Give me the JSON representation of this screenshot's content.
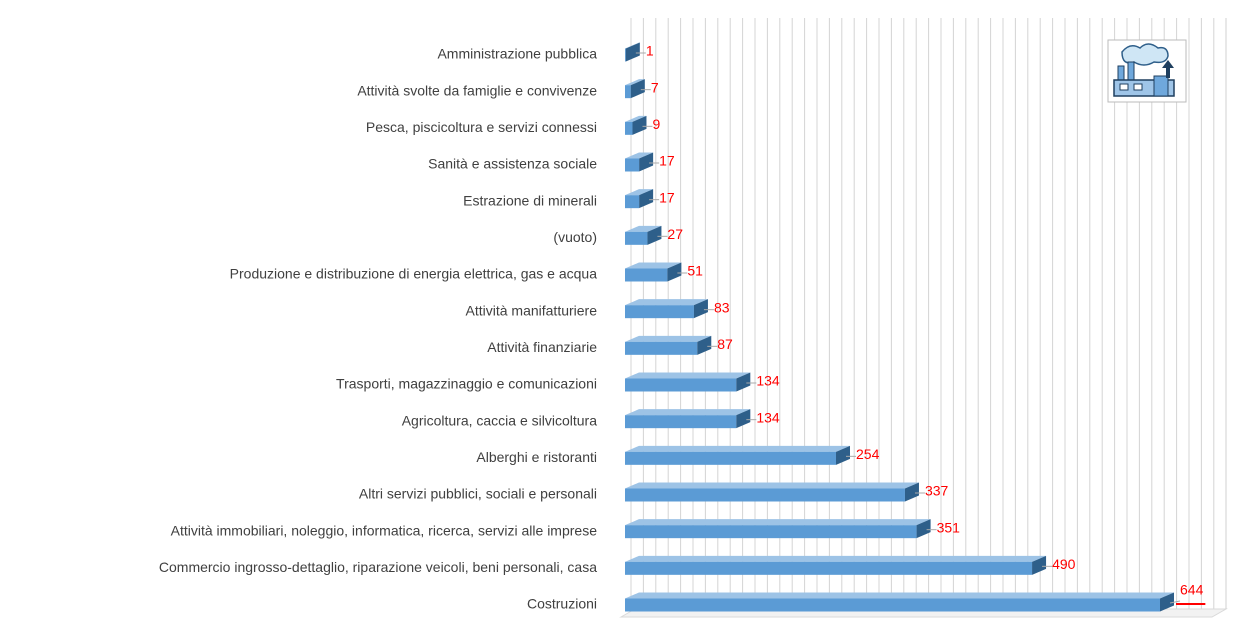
{
  "chart_data": {
    "type": "bar3d",
    "orientation": "horizontal",
    "categories": [
      "Amministrazione pubblica",
      "Attività svolte da famiglie e convivenze",
      "Pesca, piscicoltura e servizi connessi",
      "Sanità e assistenza sociale",
      "Estrazione di minerali",
      "(vuoto)",
      "Produzione e distribuzione di energia elettrica, gas e acqua",
      "Attività manifatturiere",
      "Attività finanziarie",
      "Trasporti, magazzinaggio e comunicazioni",
      "Agricoltura, caccia e silvicoltura",
      "Alberghi e ristoranti",
      "Altri servizi pubblici, sociali e personali",
      "Attività immobiliari, noleggio, informatica, ricerca, servizi alle imprese",
      "Commercio ingrosso-dettaglio, riparazione veicoli, beni personali, casa",
      "Costruzioni"
    ],
    "values": [
      1,
      7,
      9,
      17,
      17,
      27,
      51,
      83,
      87,
      134,
      134,
      254,
      337,
      351,
      490,
      644
    ],
    "color": "#5b9bd5",
    "label_color": "#ff0000"
  }
}
